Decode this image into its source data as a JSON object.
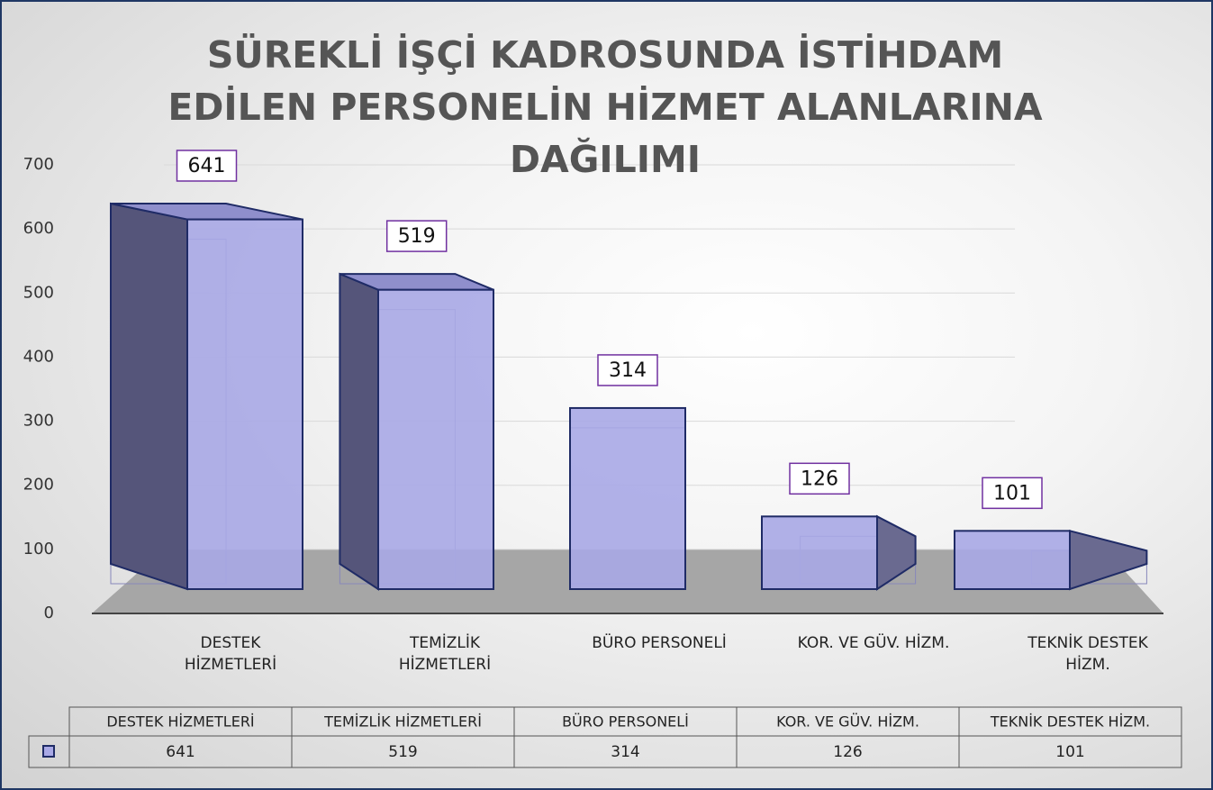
{
  "chart_data": {
    "type": "bar3d",
    "title": "SÜREKLİ İŞÇİ KADROSUNDA İSTİHDAM EDİLEN PERSONELİN HİZMET ALANLARINA DAĞILIMI",
    "categories": [
      "DESTEK HİZMETLERİ",
      "TEMİZLİK HİZMETLERİ",
      "BÜRO PERSONELİ",
      "KOR. VE GÜV. HİZM.",
      "TEKNİK DESTEK HİZM."
    ],
    "values": [
      641,
      519,
      314,
      126,
      101
    ],
    "color": "#a9a9e6",
    "ylim": [
      0,
      700
    ],
    "yticks": [
      0,
      100,
      200,
      300,
      400,
      500,
      600,
      700
    ],
    "grid": true
  }
}
